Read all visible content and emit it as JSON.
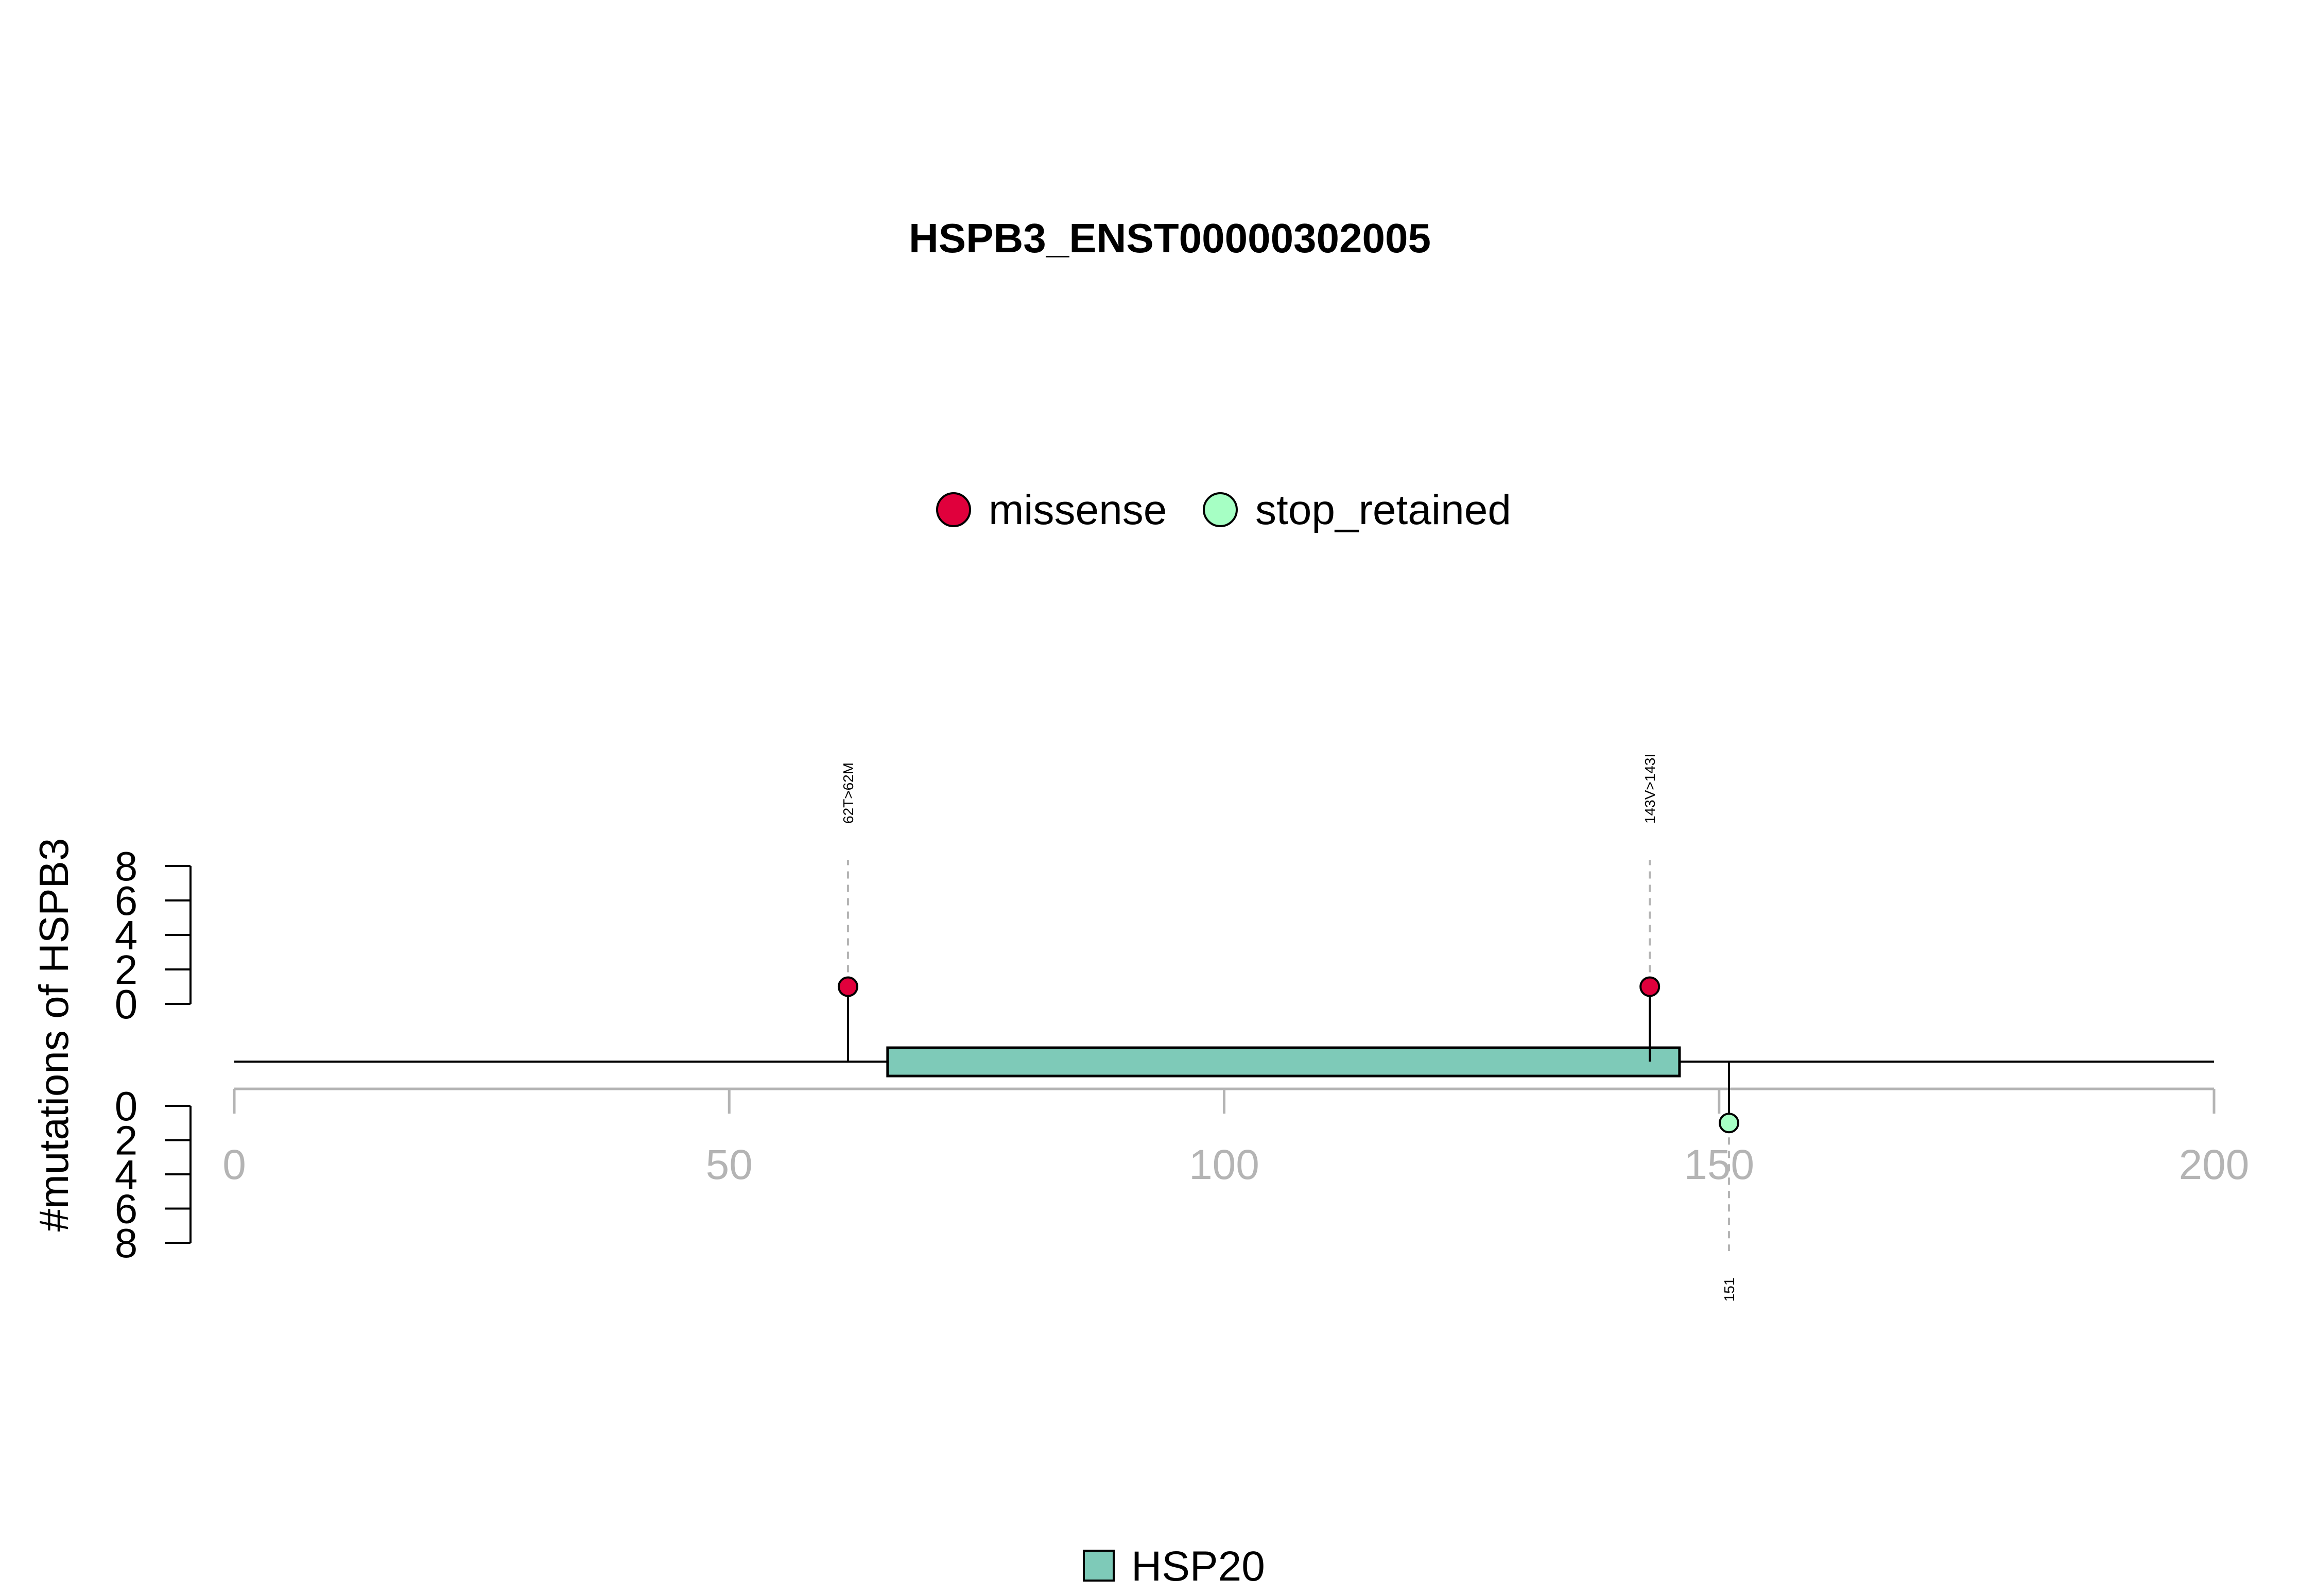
{
  "chart_data": {
    "type": "lollipop",
    "title": "HSPB3_ENST00000302005",
    "ylabel": "#mutations of HSPB3",
    "xlim": [
      0,
      200
    ],
    "x_ticks": [
      "0",
      "50",
      "100",
      "150",
      "200"
    ],
    "y_ticks_top": [
      "0",
      "2",
      "4",
      "6",
      "8"
    ],
    "y_ticks_bottom": [
      "0",
      "2",
      "4",
      "6",
      "8"
    ],
    "ylim": [
      0,
      8
    ],
    "legend_top": [
      {
        "name": "missense",
        "color": "#e0003c"
      },
      {
        "name": "stop_retained",
        "color": "#a6ffc4"
      }
    ],
    "legend_bottom": [
      {
        "name": "HSP20",
        "color": "#7ecab8"
      }
    ],
    "domains": [
      {
        "name": "HSP20",
        "start": 66,
        "end": 146,
        "color": "#7ecab8"
      }
    ],
    "mutations": [
      {
        "label": "62T>62M",
        "position": 62,
        "count": 1,
        "type": "missense",
        "side": "top",
        "color": "#e0003c"
      },
      {
        "label": "143V>143I",
        "position": 143,
        "count": 1,
        "type": "missense",
        "side": "top",
        "color": "#e0003c"
      },
      {
        "label": "151",
        "position": 151,
        "count": 1,
        "type": "stop_retained",
        "side": "bottom",
        "color": "#a6ffc4"
      }
    ]
  }
}
